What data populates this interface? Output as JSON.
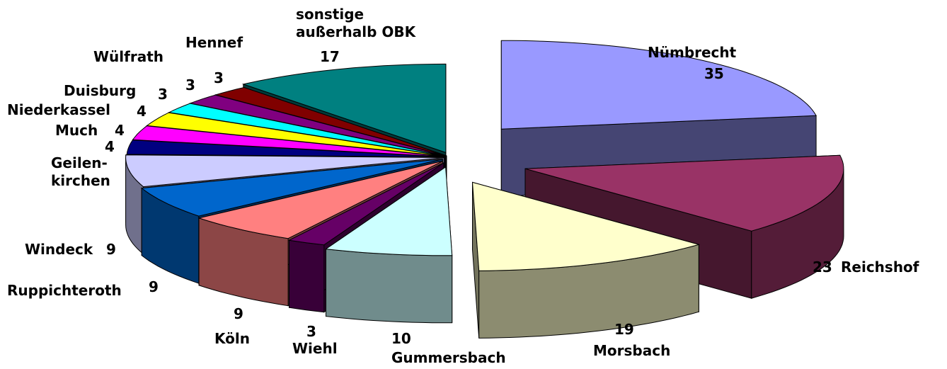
{
  "chart_data": {
    "type": "pie3d",
    "categories": [
      "Nümbrecht",
      "Reichshof",
      "Morsbach",
      "Gummersbach",
      "Wiehl",
      "Köln",
      "Ruppichteroth",
      "Windeck",
      "Geilen-\nkirchen",
      "Much",
      "Niederkassel",
      "Duisburg",
      "Wülfrath",
      "Hennef",
      "sonstige\naußerhalb OBK"
    ],
    "values": [
      35,
      23,
      19,
      10,
      3,
      9,
      9,
      9,
      4,
      4,
      4,
      3,
      3,
      3,
      17
    ],
    "colors": [
      "#9999ff",
      "#993366",
      "#ffffcc",
      "#ccffff",
      "#660066",
      "#ff8080",
      "#0066cc",
      "#ccccff",
      "#000080",
      "#ff00ff",
      "#ffff00",
      "#00ffff",
      "#800080",
      "#800000",
      "#008080"
    ]
  }
}
